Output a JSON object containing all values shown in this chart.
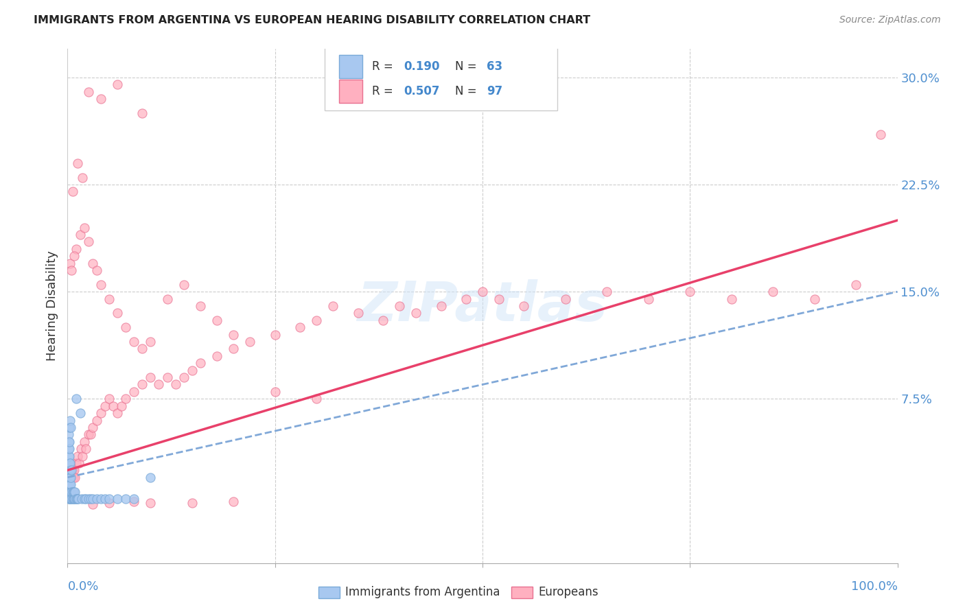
{
  "title": "IMMIGRANTS FROM ARGENTINA VS EUROPEAN HEARING DISABILITY CORRELATION CHART",
  "source": "Source: ZipAtlas.com",
  "ylabel": "Hearing Disability",
  "yticks": [
    0.0,
    0.075,
    0.15,
    0.225,
    0.3
  ],
  "ytick_labels": [
    "",
    "7.5%",
    "15.0%",
    "22.5%",
    "30.0%"
  ],
  "xlim": [
    0.0,
    1.0
  ],
  "ylim": [
    -0.04,
    0.32
  ],
  "watermark": "ZIPatlas",
  "legend_R1": "0.190",
  "legend_N1": "63",
  "legend_R2": "0.507",
  "legend_N2": "97",
  "legend_label1": "Immigrants from Argentina",
  "legend_label2": "Europeans",
  "color_argentina": "#a8c8f0",
  "color_europeans": "#ffb0c0",
  "edge_argentina": "#7aaad8",
  "edge_europeans": "#e87090",
  "color_line_argentina": "#80a8d8",
  "color_line_europeans": "#e8406a",
  "argentina_x": [
    0.001,
    0.001,
    0.001,
    0.001,
    0.001,
    0.001,
    0.001,
    0.001,
    0.001,
    0.001,
    0.002,
    0.002,
    0.002,
    0.002,
    0.002,
    0.002,
    0.002,
    0.002,
    0.002,
    0.002,
    0.003,
    0.003,
    0.003,
    0.003,
    0.003,
    0.003,
    0.003,
    0.004,
    0.004,
    0.004,
    0.004,
    0.004,
    0.005,
    0.005,
    0.005,
    0.006,
    0.006,
    0.007,
    0.007,
    0.008,
    0.008,
    0.009,
    0.009,
    0.01,
    0.01,
    0.011,
    0.012,
    0.013,
    0.015,
    0.017,
    0.02,
    0.022,
    0.025,
    0.028,
    0.03,
    0.035,
    0.04,
    0.045,
    0.05,
    0.06,
    0.07,
    0.08,
    0.1
  ],
  "argentina_y": [
    0.005,
    0.01,
    0.015,
    0.02,
    0.025,
    0.03,
    0.035,
    0.04,
    0.045,
    0.05,
    0.005,
    0.01,
    0.015,
    0.02,
    0.025,
    0.03,
    0.035,
    0.04,
    0.045,
    0.055,
    0.005,
    0.01,
    0.015,
    0.02,
    0.025,
    0.03,
    0.06,
    0.005,
    0.01,
    0.015,
    0.02,
    0.055,
    0.005,
    0.01,
    0.025,
    0.005,
    0.01,
    0.005,
    0.01,
    0.005,
    0.01,
    0.005,
    0.01,
    0.005,
    0.075,
    0.005,
    0.005,
    0.005,
    0.065,
    0.005,
    0.005,
    0.005,
    0.005,
    0.005,
    0.005,
    0.005,
    0.005,
    0.005,
    0.005,
    0.005,
    0.005,
    0.005,
    0.02
  ],
  "europeans_x": [
    0.001,
    0.002,
    0.003,
    0.004,
    0.005,
    0.006,
    0.007,
    0.008,
    0.009,
    0.01,
    0.012,
    0.014,
    0.016,
    0.018,
    0.02,
    0.022,
    0.025,
    0.028,
    0.03,
    0.035,
    0.04,
    0.045,
    0.05,
    0.055,
    0.06,
    0.065,
    0.07,
    0.08,
    0.09,
    0.1,
    0.11,
    0.12,
    0.13,
    0.14,
    0.15,
    0.16,
    0.18,
    0.2,
    0.22,
    0.25,
    0.28,
    0.3,
    0.32,
    0.35,
    0.38,
    0.4,
    0.42,
    0.45,
    0.48,
    0.5,
    0.52,
    0.55,
    0.6,
    0.65,
    0.7,
    0.75,
    0.8,
    0.85,
    0.9,
    0.95,
    0.01,
    0.015,
    0.02,
    0.025,
    0.03,
    0.035,
    0.04,
    0.05,
    0.06,
    0.07,
    0.08,
    0.09,
    0.1,
    0.12,
    0.14,
    0.16,
    0.18,
    0.2,
    0.25,
    0.3,
    0.003,
    0.005,
    0.008,
    0.03,
    0.05,
    0.08,
    0.1,
    0.15,
    0.2,
    0.98,
    0.006,
    0.012,
    0.018,
    0.025,
    0.04,
    0.06,
    0.09
  ],
  "europeans_y": [
    0.025,
    0.02,
    0.03,
    0.025,
    0.02,
    0.025,
    0.02,
    0.025,
    0.02,
    0.03,
    0.035,
    0.03,
    0.04,
    0.035,
    0.045,
    0.04,
    0.05,
    0.05,
    0.055,
    0.06,
    0.065,
    0.07,
    0.075,
    0.07,
    0.065,
    0.07,
    0.075,
    0.08,
    0.085,
    0.09,
    0.085,
    0.09,
    0.085,
    0.09,
    0.095,
    0.1,
    0.105,
    0.11,
    0.115,
    0.12,
    0.125,
    0.13,
    0.14,
    0.135,
    0.13,
    0.14,
    0.135,
    0.14,
    0.145,
    0.15,
    0.145,
    0.14,
    0.145,
    0.15,
    0.145,
    0.15,
    0.145,
    0.15,
    0.145,
    0.155,
    0.18,
    0.19,
    0.195,
    0.185,
    0.17,
    0.165,
    0.155,
    0.145,
    0.135,
    0.125,
    0.115,
    0.11,
    0.115,
    0.145,
    0.155,
    0.14,
    0.13,
    0.12,
    0.08,
    0.075,
    0.17,
    0.165,
    0.175,
    0.001,
    0.002,
    0.003,
    0.002,
    0.002,
    0.003,
    0.26,
    0.22,
    0.24,
    0.23,
    0.29,
    0.285,
    0.295,
    0.275
  ]
}
